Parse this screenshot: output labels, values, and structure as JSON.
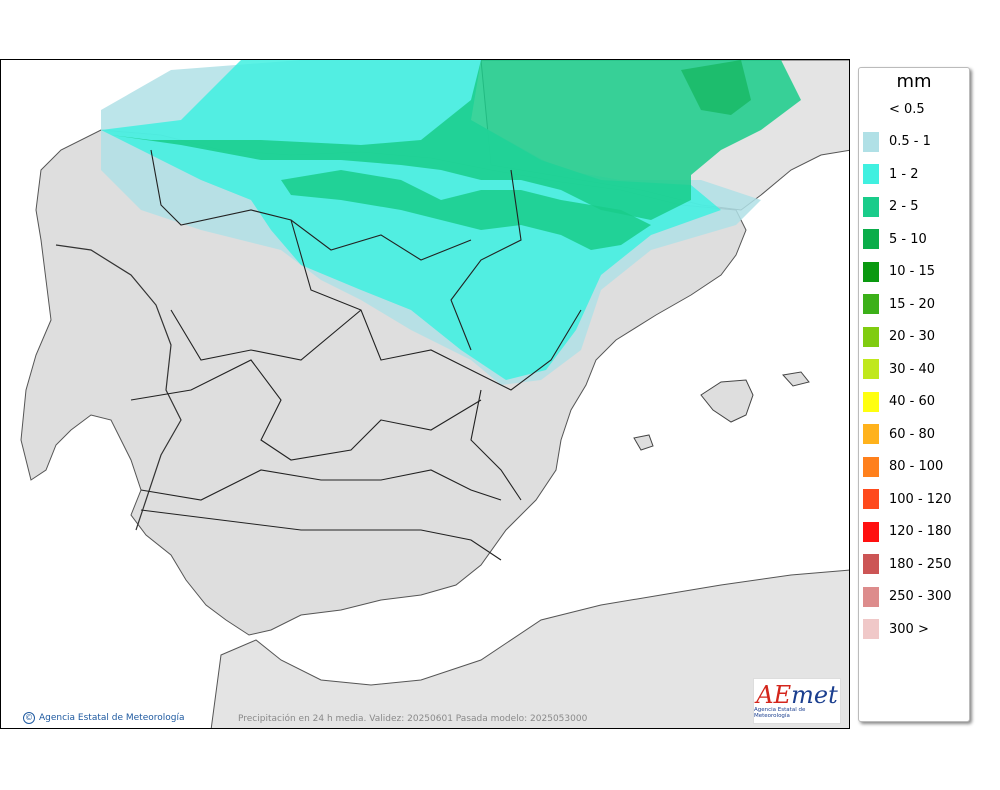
{
  "legend": {
    "title": "mm",
    "items": [
      {
        "label": "< 0.5",
        "color": ""
      },
      {
        "label": "0.5 - 1",
        "color": "#b0e0e6"
      },
      {
        "label": "1 - 2",
        "color": "#40f0e0"
      },
      {
        "label": "2 - 5",
        "color": "#19cc8a"
      },
      {
        "label": "5 - 10",
        "color": "#0aad4a"
      },
      {
        "label": "10 - 15",
        "color": "#0a9910"
      },
      {
        "label": "15 - 20",
        "color": "#3cb019"
      },
      {
        "label": "20 - 30",
        "color": "#80cc10"
      },
      {
        "label": "30 - 40",
        "color": "#c0e81c"
      },
      {
        "label": "40 - 60",
        "color": "#ffff10"
      },
      {
        "label": "60 - 80",
        "color": "#ffb21c"
      },
      {
        "label": "80 - 100",
        "color": "#ff801c"
      },
      {
        "label": "100 - 120",
        "color": "#ff4a1c"
      },
      {
        "label": "120 - 180",
        "color": "#ff1010"
      },
      {
        "label": "180 - 250",
        "color": "#cc5555"
      },
      {
        "label": "250 - 300",
        "color": "#dd8c8c"
      },
      {
        "label": "300 >",
        "color": "#f0c8c8"
      }
    ]
  },
  "footer": {
    "credit": "Agencia Estatal de Meteorología",
    "validity": "Precipitación en 24 h media. Validez: 20250601 Pasada modelo: 2025053000"
  },
  "logo": {
    "wordmark_ae": "AE",
    "wordmark_rest": "met",
    "subtitle": "Agencia Estatal de Meteorología"
  },
  "colors": {
    "land": "#dedede",
    "sea": "#ffffff",
    "border": "#222222"
  }
}
